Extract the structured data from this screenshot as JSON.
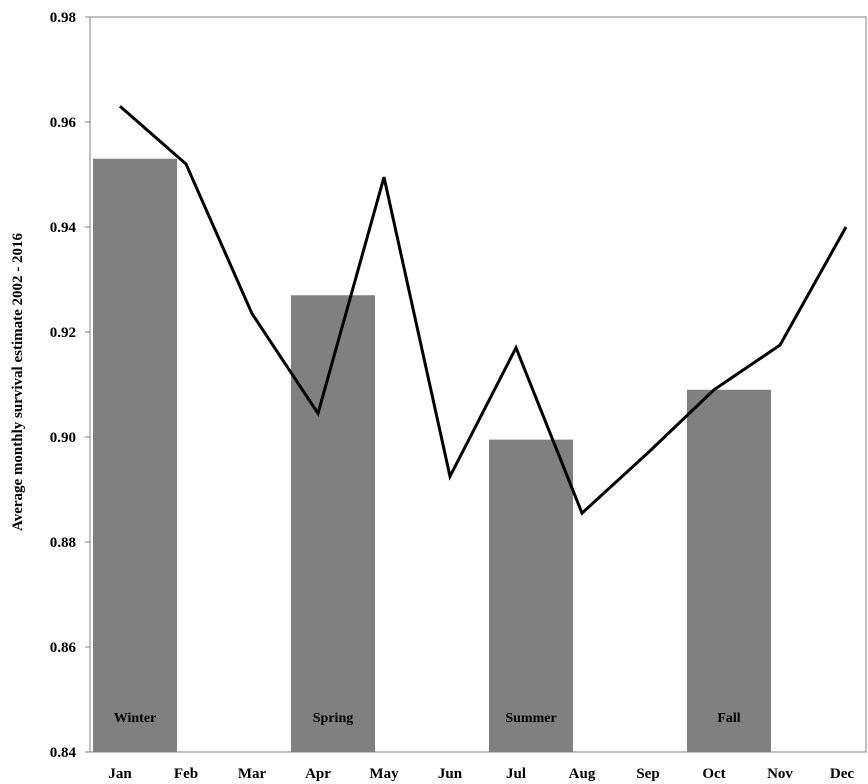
{
  "chart_data": {
    "type": "bar",
    "ylabel": "Average monthly survival estimate 2002 - 2016",
    "xlabel": "",
    "title": "",
    "ylim": [
      0.84,
      0.98
    ],
    "yticks": [
      "0.84",
      "0.86",
      "0.88",
      "0.90",
      "0.92",
      "0.94",
      "0.96",
      "0.98"
    ],
    "categories": [
      "Jan",
      "Feb",
      "Mar",
      "Apr",
      "May",
      "Jun",
      "Jul",
      "Aug",
      "Sep",
      "Oct",
      "Nov",
      "Dec"
    ],
    "grid": false,
    "bar_color": "#808080",
    "line_color": "#000000",
    "bars": [
      {
        "label": "Winter",
        "x_start": "Jan",
        "x_end": "Feb",
        "value": 0.953
      },
      {
        "label": "Spring",
        "x_start": "Apr",
        "x_end": "May",
        "value": 0.927
      },
      {
        "label": "Summer",
        "x_start": "Jul",
        "x_end": "Aug",
        "value": 0.8995
      },
      {
        "label": "Fall",
        "x_start": "Oct",
        "x_end": "Nov",
        "value": 0.909
      }
    ],
    "line": {
      "values": [
        0.963,
        0.952,
        0.9235,
        0.9045,
        0.9495,
        0.8925,
        0.917,
        0.8855,
        0.897,
        0.909,
        0.9175,
        0.94
      ]
    }
  }
}
